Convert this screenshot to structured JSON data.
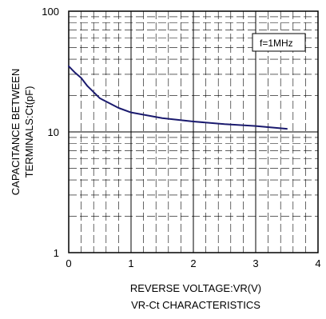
{
  "chart_data": {
    "type": "line",
    "title": "VR-Ct CHARACTERISTICS",
    "xlabel": "REVERSE VOLTAGE:VR(V)",
    "ylabel_lines": [
      "CAPACITANCE BETWEEN",
      "TERMINALS:Ct(pF)"
    ],
    "xlim": [
      0,
      4
    ],
    "ylim": [
      1,
      100
    ],
    "y_scale": "log",
    "grid": true,
    "x_ticks": [
      0,
      1,
      2,
      3,
      4
    ],
    "x_tick_labels": [
      "0",
      "1",
      "2",
      "3",
      "4"
    ],
    "y_ticks": [
      1,
      10,
      100
    ],
    "y_tick_labels": [
      "1",
      "10",
      "100"
    ],
    "annotation": "f=1MHz",
    "series": [
      {
        "color": "#1a1a6e",
        "x": [
          0,
          0.1,
          0.2,
          0.3,
          0.5,
          0.8,
          1.0,
          1.5,
          2.0,
          2.5,
          3.0,
          3.5
        ],
        "y": [
          35,
          31,
          28,
          24,
          19,
          15.8,
          14.5,
          13,
          12.2,
          11.6,
          11.2,
          10.6
        ]
      }
    ]
  }
}
